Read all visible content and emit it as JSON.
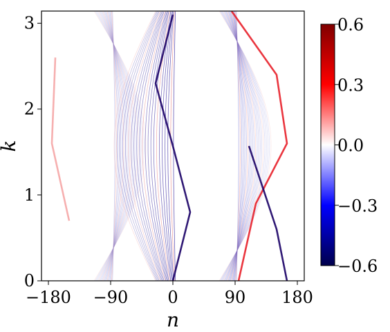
{
  "chart_data": {
    "type": "heatmap",
    "title": "",
    "xlabel": "n",
    "ylabel": "k",
    "xlim": [
      -190,
      190
    ],
    "ylim": [
      0,
      3.14159
    ],
    "xticks": [
      -180,
      -90,
      0,
      90,
      180
    ],
    "xtick_labels": [
      "−180",
      "−90",
      "0",
      "90",
      "180"
    ],
    "yticks": [
      0,
      1,
      2,
      3
    ],
    "ytick_labels": [
      "0",
      "1",
      "2",
      "3"
    ],
    "colorbar": {
      "range": [
        -0.6,
        0.6
      ],
      "colormap": "seismic",
      "colors": [
        "#00004c",
        "#0000ff",
        "#ffffff",
        "#ff0000",
        "#800000"
      ],
      "ticks": [
        -0.6,
        -0.3,
        0.0,
        0.3,
        0.6
      ],
      "tick_labels": [
        "−0.6",
        "−0.3",
        "0.0",
        "0.3",
        "0.6"
      ]
    },
    "bands": [
      {
        "center": -100,
        "amplitude": 75,
        "phase": 0,
        "color": "#8c8cd8",
        "fan_width": 28,
        "strength": 0.45
      },
      {
        "center": -10,
        "amplitude": 60,
        "phase": 3.14159,
        "color": "#3a2aa0",
        "fan_width": 30,
        "strength": 0.8
      },
      {
        "center": 80,
        "amplitude": 75,
        "phase": 0,
        "color": "#6a6ad0",
        "fan_width": 26,
        "strength": 0.55
      }
    ],
    "main_traces": [
      {
        "points": [
          [
            0,
            3.1
          ],
          [
            -25,
            2.3
          ],
          [
            0,
            1.57
          ],
          [
            25,
            0.8
          ],
          [
            0,
            0
          ]
        ],
        "color": "#1a0066"
      },
      {
        "points": [
          [
            85,
            3.14
          ],
          [
            150,
            2.4
          ],
          [
            165,
            1.6
          ],
          [
            120,
            0.9
          ],
          [
            95,
            0
          ]
        ],
        "color": "#e8202a"
      },
      {
        "points": [
          [
            -170,
            2.6
          ],
          [
            -175,
            1.6
          ],
          [
            -150,
            0.7
          ]
        ],
        "color": "#f5a6a6"
      },
      {
        "points": [
          [
            110,
            1.57
          ],
          [
            150,
            0.6
          ],
          [
            165,
            0
          ]
        ],
        "color": "#1a0066"
      }
    ]
  }
}
